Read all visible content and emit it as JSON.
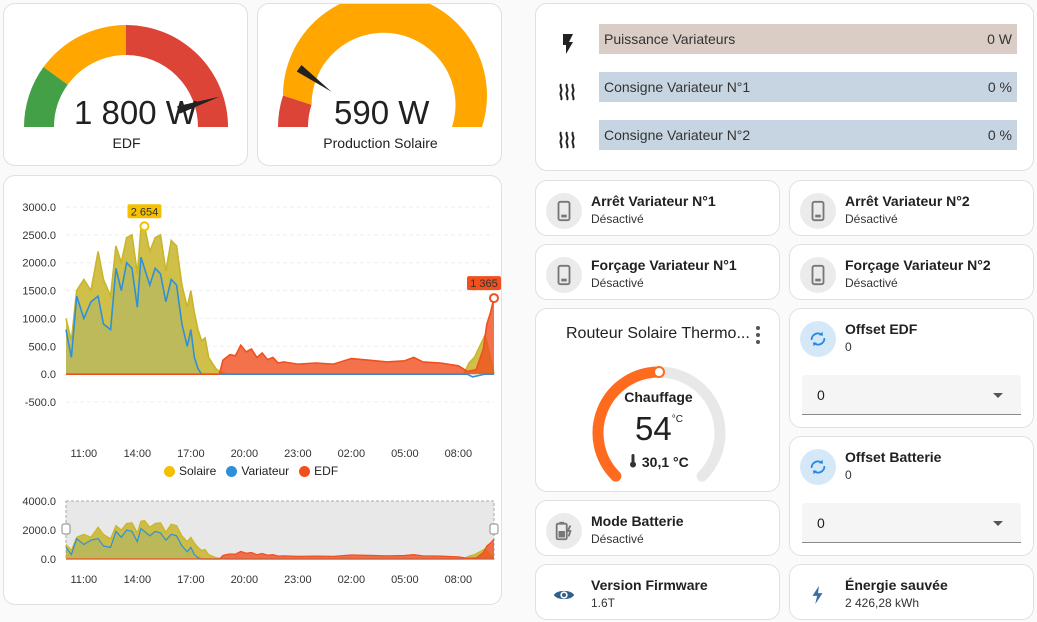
{
  "gauges": [
    {
      "value": "1 800 W",
      "name": "EDF",
      "fraction": 0.9
    },
    {
      "value": "590 W",
      "name": "Production Solaire",
      "fraction": 0.2
    }
  ],
  "entities": [
    {
      "icon": "flash-icon",
      "label": "Puissance Variateurs",
      "value": "0 W",
      "color": "#dacdc5"
    },
    {
      "icon": "heat-wave-icon",
      "label": "Consigne Variateur N°1",
      "value": "0 %",
      "color": "#c7d4e1"
    },
    {
      "icon": "heat-wave-icon",
      "label": "Consigne Variateur N°2",
      "value": "0 %",
      "color": "#c7d4e1"
    }
  ],
  "tiles": {
    "arret1": {
      "name": "Arrêt Variateur N°1",
      "state": "Désactivé",
      "icon": "phone-icon"
    },
    "arret2": {
      "name": "Arrêt Variateur N°2",
      "state": "Désactivé",
      "icon": "phone-icon"
    },
    "forcage1": {
      "name": "Forçage Variateur N°1",
      "state": "Désactivé",
      "icon": "phone-icon"
    },
    "forcage2": {
      "name": "Forçage Variateur N°2",
      "state": "Désactivé",
      "icon": "phone-icon"
    },
    "mode_batterie": {
      "name": "Mode Batterie",
      "state": "Désactivé",
      "icon": "battery-charging-icon"
    },
    "firmware": {
      "name": "Version Firmware",
      "state": "1.6T",
      "icon": "eye-icon"
    },
    "energie": {
      "name": "Énergie sauvée",
      "state": "2 426,28 kWh",
      "icon": "lightning-icon"
    }
  },
  "offsets": {
    "edf": {
      "name": "Offset EDF",
      "state": "0",
      "select_value": "0",
      "icon": "refresh-icon"
    },
    "batterie": {
      "name": "Offset Batterie",
      "state": "0",
      "select_value": "0",
      "icon": "refresh-icon"
    }
  },
  "thermostat": {
    "title": "Routeur Solaire Thermo...",
    "mode": "Chauffage",
    "target": "54",
    "unit": "°C",
    "current": "30,1 °C",
    "menu_icon": "dots-vertical-icon",
    "current_icon": "thermometer-icon",
    "fraction": 0.5
  },
  "chart_data": {
    "type": "area",
    "x_ticks": [
      "11:00",
      "14:00",
      "17:00",
      "20:00",
      "23:00",
      "02:00",
      "05:00",
      "08:00"
    ],
    "y_ticks": [
      "3000.0",
      "2500.0",
      "2000.0",
      "1500.0",
      "1000.0",
      "500.0",
      "0.0",
      "-500.0"
    ],
    "ylim": [
      -500,
      3000
    ],
    "overview_y_ticks": [
      "4000.0",
      "2000.0",
      "0.0"
    ],
    "overview_ylim": [
      0,
      4000
    ],
    "series": [
      {
        "name": "Solaire",
        "color": "#f5c000"
      },
      {
        "name": "Variateur",
        "color": "#2e90d8"
      },
      {
        "name": "EDF",
        "color": "#f04f1e"
      }
    ],
    "markers": [
      {
        "label": "2 654",
        "x": 4.4,
        "y": 2654,
        "color": "#f5c000"
      },
      {
        "label": "1 365",
        "x": 24,
        "y": 1365,
        "color": "#f04f1e"
      }
    ],
    "solaire": [
      [
        0,
        1000
      ],
      [
        0.3,
        600
      ],
      [
        0.6,
        1500
      ],
      [
        1,
        1700
      ],
      [
        1.4,
        1500
      ],
      [
        1.8,
        2200
      ],
      [
        2.1,
        1700
      ],
      [
        2.5,
        1400
      ],
      [
        2.8,
        2300
      ],
      [
        3.1,
        2000
      ],
      [
        3.4,
        2450
      ],
      [
        3.7,
        2500
      ],
      [
        4.0,
        1800
      ],
      [
        4.2,
        2600
      ],
      [
        4.4,
        2654
      ],
      [
        4.7,
        2200
      ],
      [
        5.0,
        2450
      ],
      [
        5.3,
        2500
      ],
      [
        5.6,
        1850
      ],
      [
        5.9,
        2400
      ],
      [
        6.2,
        2300
      ],
      [
        6.5,
        1600
      ],
      [
        6.8,
        1200
      ],
      [
        7.0,
        1500
      ],
      [
        7.2,
        1100
      ],
      [
        7.4,
        800
      ],
      [
        7.6,
        600
      ],
      [
        7.8,
        650
      ],
      [
        8.0,
        300
      ],
      [
        8.2,
        200
      ],
      [
        8.4,
        100
      ],
      [
        8.6,
        50
      ],
      [
        9,
        0
      ],
      [
        22.3,
        0
      ],
      [
        22.6,
        200
      ],
      [
        22.9,
        300
      ],
      [
        23.2,
        500
      ],
      [
        23.5,
        700
      ],
      [
        23.8,
        300
      ],
      [
        24,
        0
      ]
    ],
    "variateur": [
      [
        0,
        800
      ],
      [
        0.3,
        300
      ],
      [
        0.6,
        1400
      ],
      [
        1,
        1000
      ],
      [
        1.4,
        1300
      ],
      [
        1.8,
        1400
      ],
      [
        2.1,
        900
      ],
      [
        2.5,
        800
      ],
      [
        2.8,
        1900
      ],
      [
        3.1,
        1500
      ],
      [
        3.4,
        2000
      ],
      [
        3.7,
        1900
      ],
      [
        4.0,
        1200
      ],
      [
        4.2,
        2100
      ],
      [
        4.4,
        1900
      ],
      [
        4.7,
        1600
      ],
      [
        5.0,
        1900
      ],
      [
        5.3,
        1800
      ],
      [
        5.6,
        1300
      ],
      [
        5.9,
        1700
      ],
      [
        6.2,
        1600
      ],
      [
        6.5,
        900
      ],
      [
        6.8,
        500
      ],
      [
        7.0,
        800
      ],
      [
        7.2,
        300
      ],
      [
        7.4,
        100
      ],
      [
        7.6,
        0
      ],
      [
        22.5,
        0
      ],
      [
        22.8,
        -50
      ],
      [
        23.5,
        0
      ],
      [
        24,
        0
      ]
    ],
    "edf": [
      [
        0,
        0
      ],
      [
        8.6,
        0
      ],
      [
        8.8,
        250
      ],
      [
        9.0,
        300
      ],
      [
        9.2,
        350
      ],
      [
        9.5,
        330
      ],
      [
        9.8,
        520
      ],
      [
        10.1,
        400
      ],
      [
        10.4,
        450
      ],
      [
        10.7,
        300
      ],
      [
        11.0,
        380
      ],
      [
        11.3,
        260
      ],
      [
        11.6,
        300
      ],
      [
        11.9,
        200
      ],
      [
        12.2,
        220
      ],
      [
        13.0,
        180
      ],
      [
        14.0,
        200
      ],
      [
        15.0,
        180
      ],
      [
        16.0,
        280
      ],
      [
        17.0,
        250
      ],
      [
        18.0,
        220
      ],
      [
        19.0,
        240
      ],
      [
        19.5,
        300
      ],
      [
        20.0,
        220
      ],
      [
        21.0,
        200
      ],
      [
        22.0,
        150
      ],
      [
        22.5,
        50
      ],
      [
        23.0,
        80
      ],
      [
        23.4,
        450
      ],
      [
        23.6,
        900
      ],
      [
        23.8,
        1100
      ],
      [
        24,
        1365
      ]
    ]
  }
}
